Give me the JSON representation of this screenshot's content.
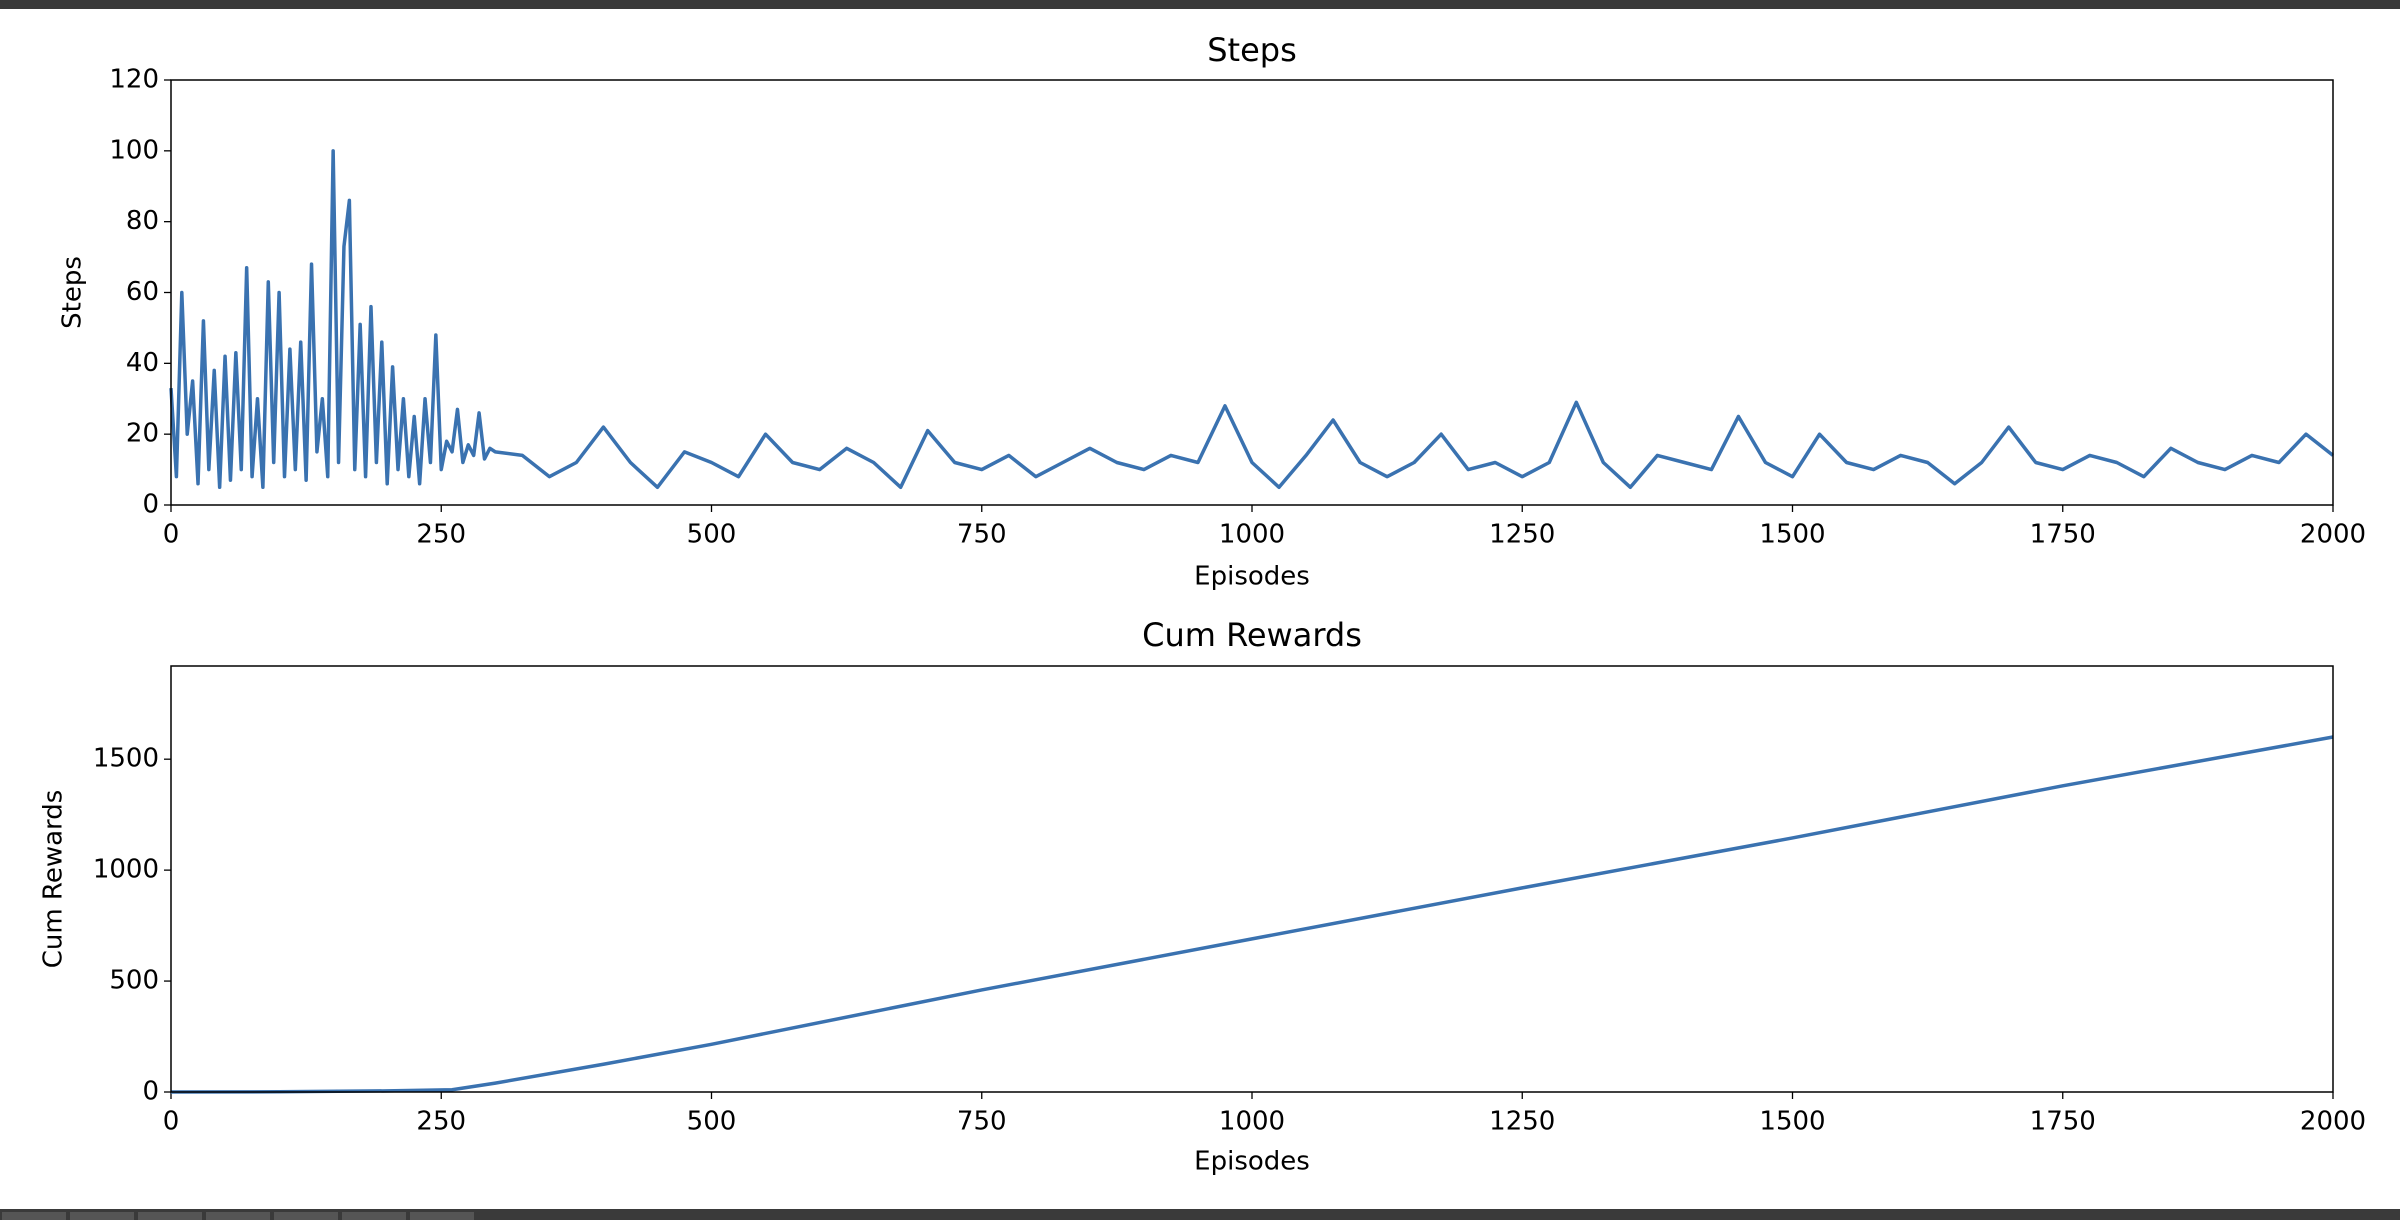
{
  "chart_data": [
    {
      "type": "line",
      "title": "Steps",
      "xlabel": "Episodes",
      "ylabel": "Steps",
      "color": "#3a72b0",
      "x": [
        0,
        5,
        10,
        15,
        20,
        25,
        30,
        35,
        40,
        45,
        50,
        55,
        60,
        65,
        70,
        75,
        80,
        85,
        90,
        95,
        100,
        105,
        110,
        115,
        120,
        125,
        130,
        135,
        140,
        145,
        150,
        155,
        160,
        165,
        170,
        175,
        180,
        185,
        190,
        195,
        200,
        205,
        210,
        215,
        220,
        225,
        230,
        235,
        240,
        245,
        250,
        255,
        260,
        265,
        270,
        275,
        280,
        285,
        290,
        295,
        300,
        325,
        350,
        375,
        400,
        425,
        450,
        475,
        500,
        525,
        550,
        575,
        600,
        625,
        650,
        675,
        700,
        725,
        750,
        775,
        800,
        825,
        850,
        875,
        900,
        925,
        950,
        975,
        1000,
        1025,
        1050,
        1075,
        1100,
        1125,
        1150,
        1175,
        1200,
        1225,
        1250,
        1275,
        1300,
        1325,
        1350,
        1375,
        1400,
        1425,
        1450,
        1475,
        1500,
        1525,
        1550,
        1575,
        1600,
        1625,
        1650,
        1675,
        1700,
        1725,
        1750,
        1775,
        1800,
        1825,
        1850,
        1875,
        1900,
        1925,
        1950,
        1975,
        2000
      ],
      "values": [
        33,
        8,
        60,
        20,
        35,
        6,
        52,
        10,
        38,
        5,
        42,
        7,
        43,
        10,
        67,
        8,
        30,
        5,
        63,
        12,
        60,
        8,
        44,
        10,
        46,
        7,
        68,
        15,
        30,
        8,
        100,
        12,
        73,
        86,
        10,
        51,
        8,
        56,
        12,
        46,
        6,
        39,
        10,
        30,
        8,
        25,
        6,
        30,
        12,
        48,
        10,
        18,
        15,
        27,
        12,
        17,
        14,
        26,
        13,
        16,
        15,
        14,
        8,
        12,
        22,
        12,
        5,
        15,
        12,
        8,
        20,
        12,
        10,
        16,
        12,
        5,
        21,
        12,
        10,
        14,
        8,
        12,
        16,
        12,
        10,
        14,
        12,
        28,
        12,
        5,
        14,
        24,
        12,
        8,
        12,
        20,
        10,
        12,
        8,
        12,
        29,
        12,
        5,
        14,
        12,
        10,
        25,
        12,
        8,
        20,
        12,
        10,
        14,
        12,
        6,
        12,
        22,
        12,
        10,
        14,
        12,
        8,
        16,
        12,
        10,
        14,
        12,
        20,
        14
      ],
      "xlim": [
        0,
        2000
      ],
      "xticks": [
        0,
        250,
        500,
        750,
        1000,
        1250,
        1500,
        1750,
        2000
      ],
      "ylim": [
        0,
        120
      ],
      "yticks": [
        0,
        20,
        40,
        60,
        80,
        100,
        120
      ]
    },
    {
      "type": "line",
      "title": "Cum Rewards",
      "xlabel": "Episodes",
      "ylabel": "Cum Rewards",
      "color": "#3a72b0",
      "x": [
        0,
        100,
        200,
        260,
        300,
        400,
        500,
        750,
        1000,
        1250,
        1500,
        1750,
        2000
      ],
      "values": [
        0,
        1,
        5,
        10,
        40,
        125,
        215,
        460,
        690,
        920,
        1145,
        1380,
        1600
      ],
      "xlim": [
        0,
        2000
      ],
      "xticks": [
        0,
        250,
        500,
        750,
        1000,
        1250,
        1500,
        1750,
        2000
      ],
      "ylim": [
        0,
        1920
      ],
      "yticks": [
        0,
        500,
        1000,
        1500
      ]
    }
  ]
}
